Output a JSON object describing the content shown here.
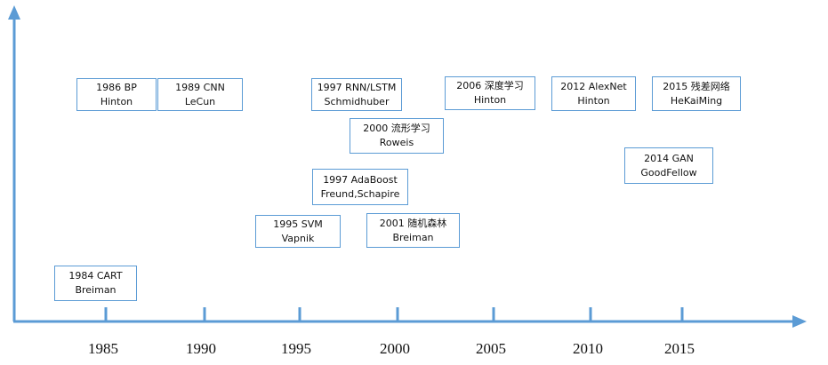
{
  "colors": {
    "axis": "#5b9bd5",
    "box_border": "#5b9bd5",
    "text": "#111111"
  },
  "axis": {
    "ticks": [
      "1985",
      "1990",
      "1995",
      "2000",
      "2005",
      "2010",
      "2015"
    ]
  },
  "events": [
    {
      "id": "bp",
      "line1": "1986 BP",
      "line2": "Hinton"
    },
    {
      "id": "cnn",
      "line1": "1989 CNN",
      "line2": "LeCun"
    },
    {
      "id": "rnn",
      "line1": "1997 RNN/LSTM",
      "line2": "Schmidhuber"
    },
    {
      "id": "deep",
      "line1": "2006 深度学习",
      "line2": "Hinton"
    },
    {
      "id": "alexnet",
      "line1": "2012 AlexNet",
      "line2": "Hinton"
    },
    {
      "id": "resnet",
      "line1": "2015 残差网络",
      "line2": "HeKaiMing"
    },
    {
      "id": "manifold",
      "line1": "2000 流形学习",
      "line2": "Roweis"
    },
    {
      "id": "gan",
      "line1": "2014 GAN",
      "line2": "GoodFellow"
    },
    {
      "id": "adaboost",
      "line1": "1997 AdaBoost",
      "line2": "Freund,Schapire"
    },
    {
      "id": "svm",
      "line1": "1995 SVM",
      "line2": "Vapnik"
    },
    {
      "id": "rf",
      "line1": "2001 随机森林",
      "line2": "Breiman"
    },
    {
      "id": "cart",
      "line1": "1984 CART",
      "line2": "Breiman"
    }
  ]
}
